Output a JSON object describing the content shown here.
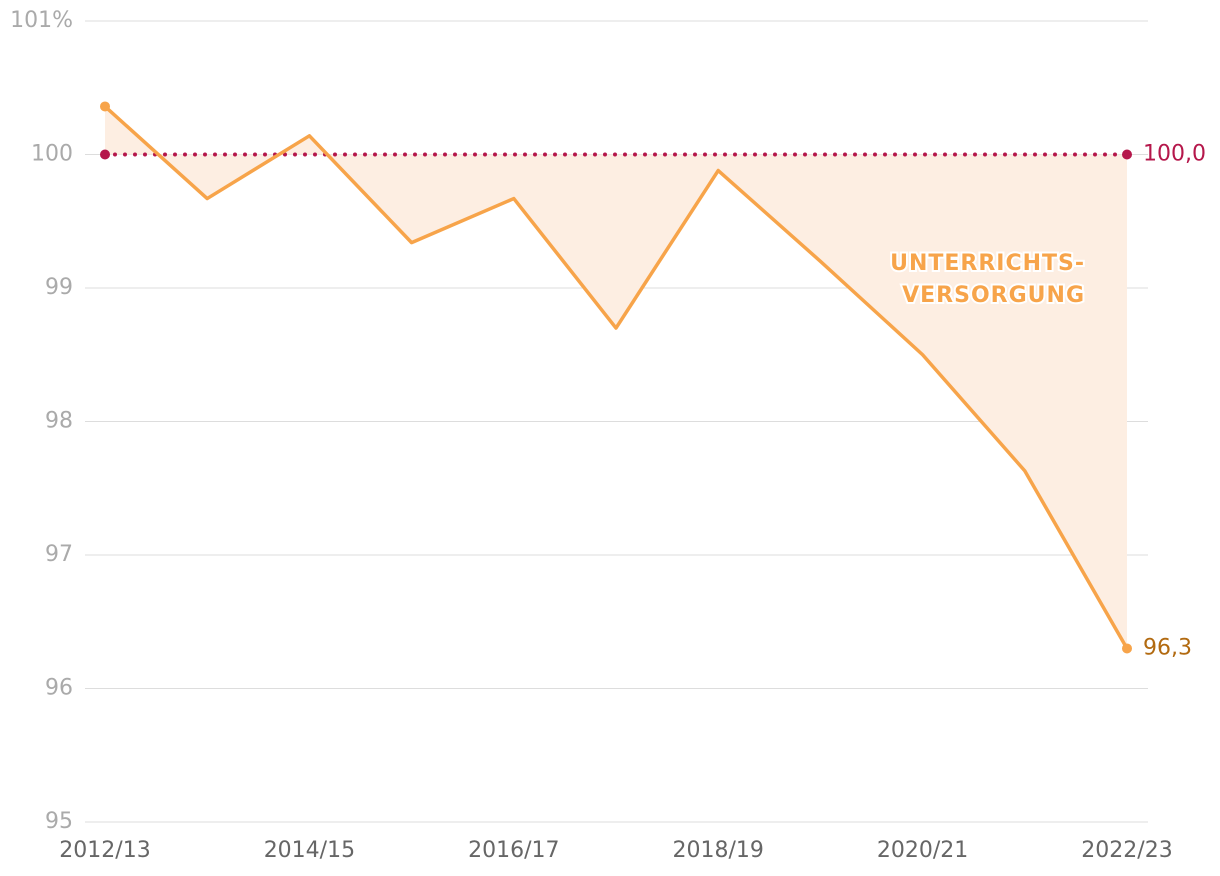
{
  "chart_data": {
    "type": "line",
    "categories": [
      "2012/13",
      null,
      "2014/15",
      null,
      "2016/17",
      null,
      "2018/19",
      null,
      "2020/21",
      null,
      "2022/23"
    ],
    "series": [
      {
        "color": "#f7a44a",
        "values": [
          100.36,
          99.67,
          100.14,
          99.34,
          99.67,
          98.7,
          99.88,
          99.2,
          98.5,
          97.63,
          96.3
        ],
        "value_labels": [
          null,
          null,
          null,
          null,
          null,
          null,
          null,
          null,
          null,
          null,
          "96,3"
        ]
      }
    ],
    "reference": {
      "value": 100,
      "label": "100,0",
      "color": "#b5174b"
    },
    "area_color": "#fdeee2",
    "annotation": [
      "UNTERRICHTS-",
      "VERSORGUNG"
    ],
    "ylim": [
      95,
      101
    ],
    "yticks": [
      95,
      96,
      97,
      98,
      99,
      100,
      {
        "value": 101,
        "label": "101%"
      }
    ],
    "grid": true
  }
}
